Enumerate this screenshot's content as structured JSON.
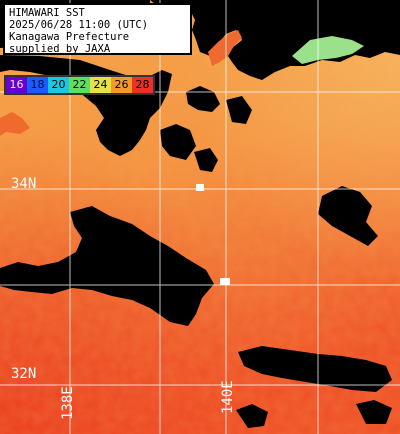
{
  "info": {
    "line1": "HIMAWARI SST",
    "line2": "2025/06/28 11:00 (UTC)",
    "line3": "Kanagawa Prefecture",
    "line4": "supplied by JAXA"
  },
  "scale": {
    "labels": [
      "16",
      "18",
      "20",
      "22",
      "24",
      "26",
      "28"
    ],
    "colors": [
      "#6a00d0",
      "#1e5bff",
      "#19c9e0",
      "#5ee05e",
      "#e6e04a",
      "#f59a2a",
      "#ee3124"
    ]
  },
  "grid": {
    "lat_labels": [
      "34N",
      "32N"
    ],
    "lon_labels": [
      "138E",
      "140E"
    ]
  },
  "colors": {
    "land": "#000000",
    "sea_warm": "#f2a040",
    "sea_hot": "#ef4a20",
    "coast_cool": "#9be08a",
    "grid": "#ffffff"
  }
}
